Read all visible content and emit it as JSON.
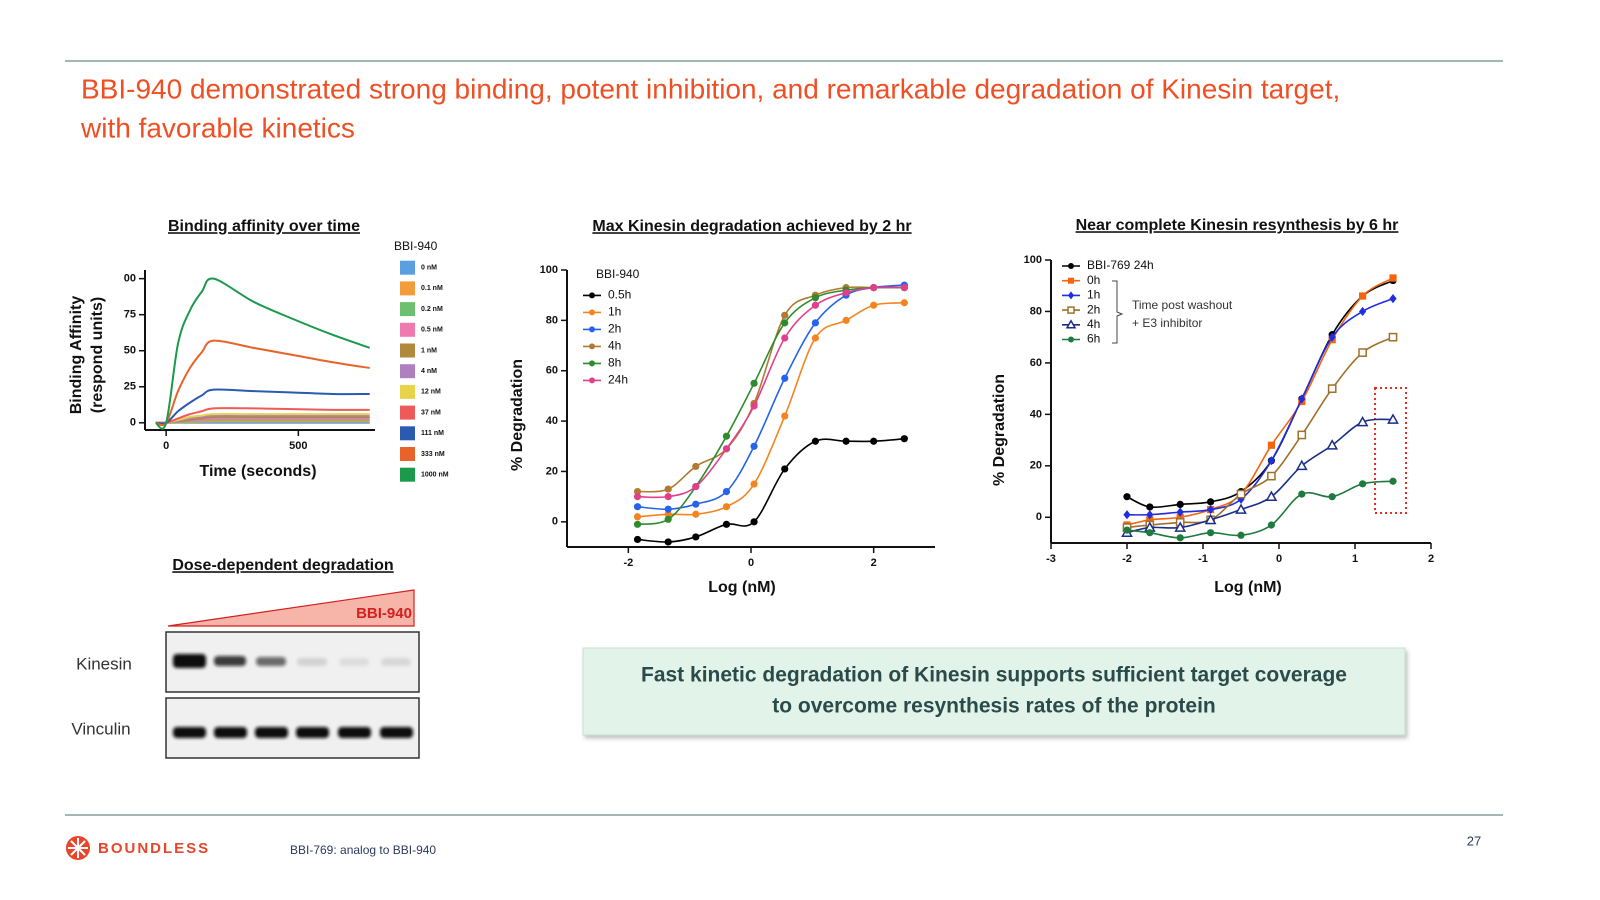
{
  "header": {
    "title_lines": [
      "BBI-940 demonstrated strong binding, potent inhibition, and remarkable degradation of Kinesin target,",
      "with favorable kinetics"
    ]
  },
  "chart_data": [
    {
      "type": "line",
      "title": "Binding affinity over time",
      "xlabel": "Time (seconds)",
      "ylabel": [
        "Binding Affinity",
        "(respond units)"
      ],
      "x": [
        -40,
        0,
        45,
        90,
        135,
        180,
        330,
        480,
        630,
        770
      ],
      "xlim": [
        -80,
        790
      ],
      "xticks": [
        0,
        500
      ],
      "ylim": [
        -5,
        106
      ],
      "yticks": [
        0,
        25,
        50,
        75,
        {
          "value": 100,
          "label": "00"
        }
      ],
      "legend_title": "BBI-940",
      "series": [
        {
          "name": "0 nM",
          "color": "#5aa0e0",
          "values": [
            0,
            0,
            0,
            0,
            0,
            0,
            0,
            0,
            0,
            0
          ]
        },
        {
          "name": "0.1 nM",
          "color": "#f39c3c",
          "values": [
            0,
            0,
            0.3,
            0.5,
            0.8,
            1,
            1,
            1,
            1,
            1
          ]
        },
        {
          "name": "0.2 nM",
          "color": "#6cc070",
          "values": [
            0,
            0,
            0.5,
            1,
            1.5,
            2,
            2,
            2,
            2,
            2
          ]
        },
        {
          "name": "0.5 nM",
          "color": "#ef7ab0",
          "values": [
            0,
            0,
            1,
            1.5,
            2,
            3,
            3,
            3,
            3,
            3
          ]
        },
        {
          "name": "1 nM",
          "color": "#b08a3a",
          "values": [
            0,
            0,
            1,
            2,
            3,
            4,
            4,
            4,
            4,
            4
          ]
        },
        {
          "name": "4 nM",
          "color": "#b07fc0",
          "values": [
            0,
            0,
            1.5,
            3,
            4,
            5,
            5,
            5,
            5,
            5
          ]
        },
        {
          "name": "12 nM",
          "color": "#e8d44a",
          "values": [
            0,
            0,
            2,
            4,
            5,
            6,
            6,
            6,
            6,
            6
          ]
        },
        {
          "name": "37 nM",
          "color": "#ee5a5a",
          "values": [
            0,
            0,
            3,
            6,
            8,
            10,
            10,
            9.5,
            9,
            9
          ]
        },
        {
          "name": "111 nM",
          "color": "#2a5bb0",
          "values": [
            0,
            0,
            8,
            14,
            19,
            23,
            22,
            21,
            20,
            20
          ]
        },
        {
          "name": "333 nM",
          "color": "#e8632a",
          "values": [
            0,
            0,
            22,
            38,
            49,
            57,
            52,
            47,
            42,
            38
          ]
        },
        {
          "name": "1000 nM",
          "color": "#1a9a4a",
          "values": [
            0,
            0,
            55,
            78,
            91,
            100,
            84,
            72,
            61,
            52
          ]
        }
      ]
    },
    {
      "type": "line",
      "title": "Max Kinesin degradation achieved by 2 hr",
      "xlabel": "Log (nM)",
      "ylabel": "% Degradation",
      "x": [
        -1.85,
        -1.35,
        -0.9,
        -0.4,
        0.05,
        0.55,
        1.05,
        1.55,
        2.0,
        2.5
      ],
      "xlim": [
        -3,
        3
      ],
      "xticks": [
        -2,
        0,
        2
      ],
      "ylim": [
        -10,
        100
      ],
      "yticks": [
        0,
        20,
        40,
        60,
        80,
        100
      ],
      "legend_title": "BBI-940",
      "series": [
        {
          "name": "0.5h",
          "color": "#000000",
          "marker": "circle",
          "values": [
            -7,
            -8,
            -6,
            -1,
            0,
            21,
            32,
            32,
            32,
            33
          ]
        },
        {
          "name": "1h",
          "color": "#f5841f",
          "marker": "circle",
          "values": [
            2,
            3,
            3,
            6,
            15,
            42,
            73,
            80,
            86,
            87
          ]
        },
        {
          "name": "2h",
          "color": "#2563eb",
          "marker": "circle",
          "values": [
            6,
            5,
            7,
            12,
            30,
            57,
            79,
            90,
            93,
            94
          ]
        },
        {
          "name": "4h",
          "color": "#b07a30",
          "marker": "circle",
          "values": [
            12,
            13,
            22,
            29,
            47,
            82,
            90,
            93,
            93,
            93
          ]
        },
        {
          "name": "8h",
          "color": "#2e8b2e",
          "marker": "circle",
          "values": [
            -1,
            1,
            14,
            34,
            55,
            79,
            89,
            92,
            93,
            93
          ]
        },
        {
          "name": "24h",
          "color": "#e0408a",
          "marker": "circle",
          "values": [
            10,
            10,
            14,
            29,
            46,
            73,
            86,
            91,
            93,
            93
          ]
        }
      ]
    },
    {
      "type": "line",
      "title": "Near complete Kinesin resynthesis by 6 hr",
      "xlabel": "Log (nM)",
      "ylabel": "% Degradation",
      "x": [
        -2,
        -1.7,
        -1.3,
        -0.9,
        -0.5,
        -0.1,
        0.3,
        0.7,
        1.1,
        1.5
      ],
      "xlim": [
        -3,
        2
      ],
      "xticks": [
        -3,
        -2,
        -1,
        0,
        1,
        2
      ],
      "ylim": [
        -10,
        100
      ],
      "yticks": [
        0,
        20,
        40,
        60,
        80,
        100
      ],
      "annotation": [
        "Time post washout",
        "+ E3 inhibitor"
      ],
      "series": [
        {
          "name": "BBI-769 24h",
          "color": "#000000",
          "marker": "circle",
          "values": [
            8,
            4,
            5,
            6,
            10,
            22,
            46,
            71,
            86,
            92
          ]
        },
        {
          "name": "0h",
          "color": "#f5640f",
          "marker": "square",
          "values": [
            -3,
            -1,
            0,
            3,
            9,
            28,
            45,
            69,
            86,
            93
          ]
        },
        {
          "name": "1h",
          "color": "#1f2ee0",
          "marker": "diamond",
          "values": [
            1,
            1,
            2,
            3,
            7,
            22,
            46,
            70,
            80,
            85
          ]
        },
        {
          "name": "2h",
          "color": "#a0702a",
          "marker": "open-square",
          "values": [
            -4,
            -3,
            -2,
            -1,
            9,
            16,
            32,
            50,
            64,
            70
          ]
        },
        {
          "name": "4h",
          "color": "#1a2e8a",
          "marker": "open-triangle",
          "values": [
            -6,
            -4,
            -4,
            -1,
            3,
            8,
            20,
            28,
            37,
            38
          ]
        },
        {
          "name": "6h",
          "color": "#1e7a3e",
          "marker": "circle",
          "values": [
            -5,
            -6,
            -8,
            -6,
            -7,
            -3,
            9,
            8,
            13,
            14
          ]
        }
      ]
    }
  ],
  "blot": {
    "title": "Dose-dependent degradation",
    "compound": "BBI-940",
    "rows": [
      "Kinesin",
      "Vinculin"
    ]
  },
  "callout": {
    "lines": [
      "Fast kinetic degradation of Kinesin supports sufficient target coverage",
      "to overcome resynthesis rates of the protein"
    ]
  },
  "footer": {
    "logo": "BOUNDLESS",
    "note": "BBI-769: analog to BBI-940",
    "page": "27"
  }
}
